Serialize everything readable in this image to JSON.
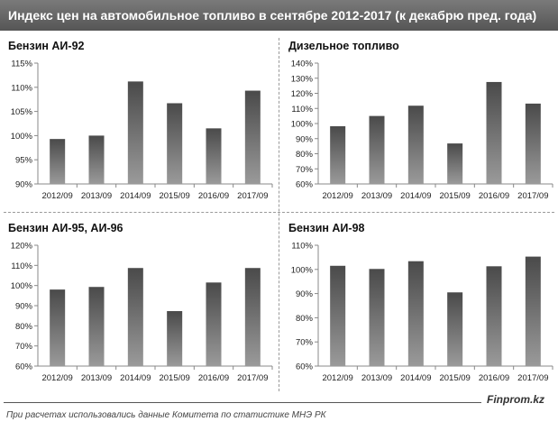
{
  "header": {
    "title": "Индекс цен на автомобильное топливо в сентябре 2012-2017  (к декабрю пред. года)"
  },
  "footer": {
    "brand": "Finprom.kz",
    "source": "При расчетах использовались данные Комитета по статистике МНЭ РК"
  },
  "colors": {
    "title_bar": "#666666",
    "bar_top": "#4a4a4a",
    "bar_bottom": "#9a9a9a"
  },
  "chart_data": [
    {
      "type": "bar",
      "title": "Бензин АИ-92",
      "categories": [
        "2012/09",
        "2013/09",
        "2014/09",
        "2015/09",
        "2016/09",
        "2017/09"
      ],
      "values": [
        99.3,
        100.0,
        111.2,
        106.7,
        101.5,
        109.3
      ],
      "ylim": [
        90,
        115
      ],
      "yticks": [
        90,
        95,
        100,
        105,
        110,
        115
      ],
      "ytick_labels": [
        "90%",
        "95%",
        "100%",
        "105%",
        "110%",
        "115%"
      ],
      "grid": false
    },
    {
      "type": "bar",
      "title": "Дизельное топливо",
      "categories": [
        "2012/09",
        "2013/09",
        "2014/09",
        "2015/09",
        "2016/09",
        "2017/09"
      ],
      "values": [
        98.2,
        105.0,
        111.8,
        86.8,
        127.5,
        113.2
      ],
      "ylim": [
        60,
        140
      ],
      "yticks": [
        60,
        70,
        80,
        90,
        100,
        110,
        120,
        130,
        140
      ],
      "ytick_labels": [
        "60%",
        "70%",
        "80%",
        "90%",
        "100%",
        "110%",
        "120%",
        "130%",
        "140%"
      ],
      "grid": false
    },
    {
      "type": "bar",
      "title": "Бензин АИ-95, АИ-96",
      "categories": [
        "2012/09",
        "2013/09",
        "2014/09",
        "2015/09",
        "2016/09",
        "2017/09"
      ],
      "values": [
        98.0,
        99.3,
        108.7,
        87.3,
        101.5,
        108.7
      ],
      "ylim": [
        60,
        120
      ],
      "yticks": [
        60,
        70,
        80,
        90,
        100,
        110,
        120
      ],
      "ytick_labels": [
        "60%",
        "70%",
        "80%",
        "90%",
        "100%",
        "110%",
        "120%"
      ],
      "grid": false
    },
    {
      "type": "bar",
      "title": "Бензин АИ-98",
      "categories": [
        "2012/09",
        "2013/09",
        "2014/09",
        "2015/09",
        "2016/09",
        "2017/09"
      ],
      "values": [
        101.5,
        100.2,
        103.4,
        90.5,
        101.3,
        105.3
      ],
      "ylim": [
        60,
        110
      ],
      "yticks": [
        60,
        70,
        80,
        90,
        100,
        110
      ],
      "ytick_labels": [
        "60%",
        "70%",
        "80%",
        "90%",
        "100%",
        "110%"
      ],
      "grid": false
    }
  ]
}
